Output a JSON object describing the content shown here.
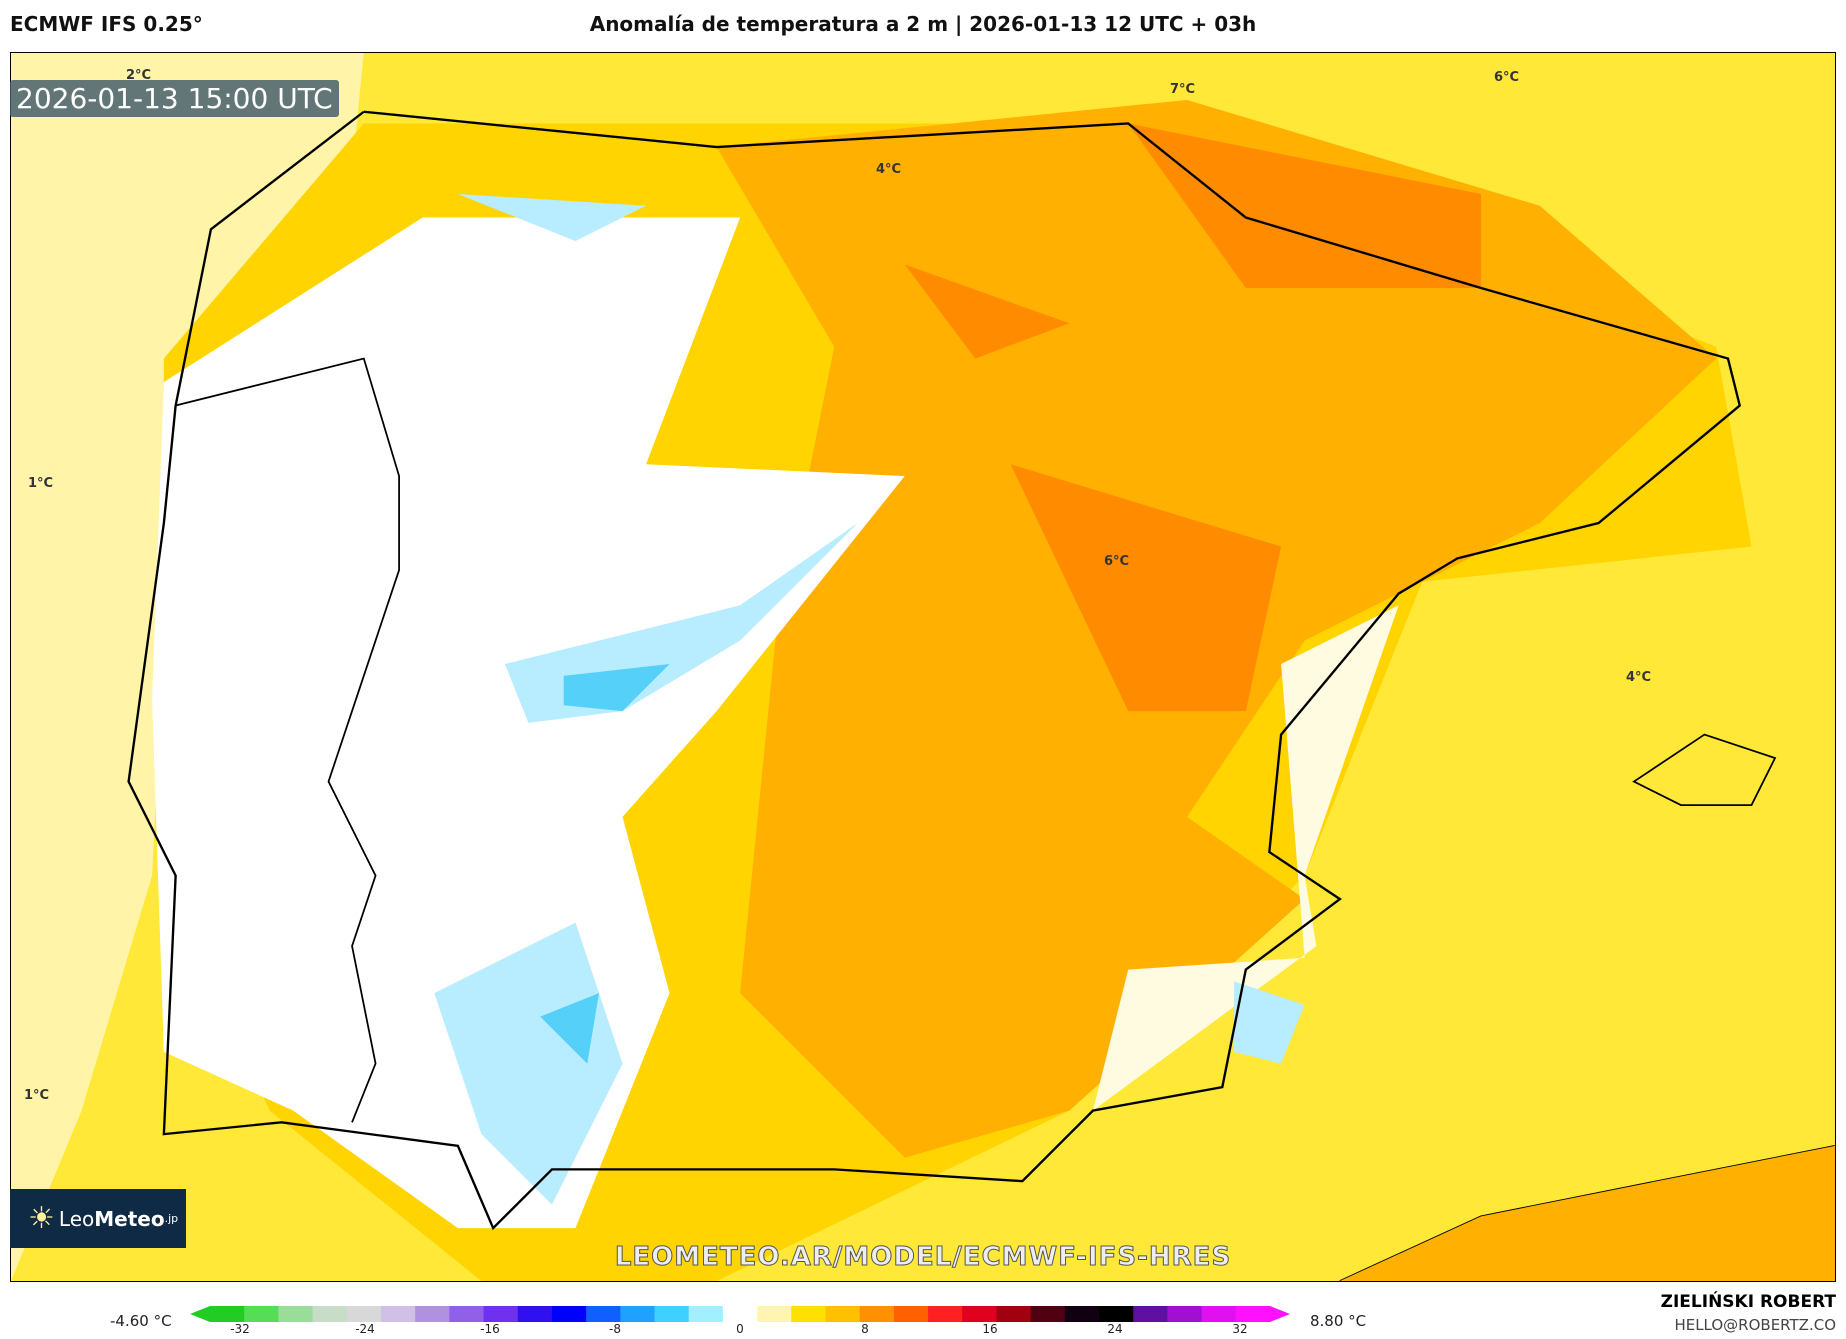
{
  "header": {
    "model": "ECMWF IFS 0.25°",
    "title": "Anomalía de temperatura a 2 m | 2026-01-13 12 UTC + 03h"
  },
  "map": {
    "timestamp": "2026-01-13 15:00 UTC",
    "contour_labels": [
      "2°C",
      "7°C",
      "6°C",
      "4°C",
      "1°C",
      "6°C",
      "4°C",
      "1°C"
    ],
    "watermark_url": "LEOMETEO.AR/MODEL/ECMWF-IFS-HRES"
  },
  "logo": {
    "text_light": "Leo",
    "text_bold": "Meteo",
    "suffix": ".jp"
  },
  "colorbar": {
    "min_label": "-4.60 °C",
    "max_label": "8.80 °C",
    "ticks": [
      "-32",
      "-24",
      "-16",
      "-8",
      "0",
      "8",
      "16",
      "24",
      "32"
    ],
    "colors": [
      "#22cc22",
      "#55dd55",
      "#99dd99",
      "#c8ddc8",
      "#d8d8d8",
      "#d0c0e8",
      "#b090e0",
      "#9060e8",
      "#7030f0",
      "#3010f0",
      "#0000ff",
      "#1060ff",
      "#20a0ff",
      "#40d0ff",
      "#a0f0ff",
      "#ffffff",
      "#fff5b0",
      "#ffe000",
      "#ffc000",
      "#ff9000",
      "#ff6000",
      "#ff2020",
      "#e00020",
      "#a00010",
      "#500010",
      "#100010",
      "#000000",
      "#6010a0",
      "#a010d0",
      "#e010f0",
      "#ff10ff"
    ]
  },
  "credits": {
    "author": "ZIELIŃSKI ROBERT",
    "email": "HELLO@ROBERTZ.CO"
  }
}
